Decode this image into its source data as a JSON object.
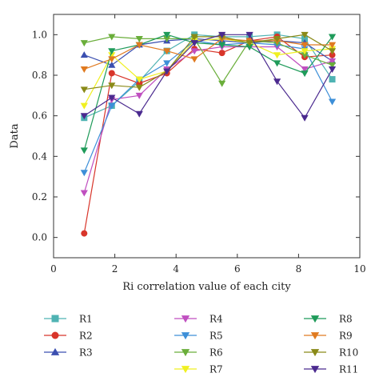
{
  "chart_data": {
    "type": "line",
    "xlabel": "Ri correlation value of each city",
    "ylabel": "Data",
    "xlim": [
      0,
      10
    ],
    "ylim": [
      -0.1,
      1.1
    ],
    "xticks": [
      0,
      2,
      4,
      6,
      8,
      10
    ],
    "yticks": [
      0.0,
      0.2,
      0.4,
      0.6,
      0.8,
      1.0
    ],
    "xtick_labels": [
      "0",
      "2",
      "4",
      "6",
      "8",
      "10"
    ],
    "ytick_labels": [
      "0.0",
      "0.2",
      "0.4",
      "0.6",
      "0.8",
      "1.0"
    ],
    "grid": false,
    "legend_position": "bottom",
    "x": [
      1,
      1.9,
      2.8,
      3.7,
      4.6,
      5.5,
      6.4,
      7.3,
      8.2,
      9.1
    ],
    "series": [
      {
        "name": "R1",
        "color": "#4fb3b3",
        "marker": "square",
        "values": [
          0.59,
          0.65,
          0.77,
          0.92,
          1.0,
          0.99,
          0.99,
          1.0,
          0.98,
          0.78
        ]
      },
      {
        "name": "R2",
        "color": "#d8352a",
        "marker": "circle",
        "values": [
          0.02,
          0.81,
          0.76,
          0.81,
          0.93,
          0.91,
          0.97,
          0.99,
          0.89,
          0.9
        ]
      },
      {
        "name": "R3",
        "color": "#3b4fb0",
        "marker": "triangle-up",
        "values": [
          0.9,
          0.85,
          0.95,
          0.97,
          0.98,
          0.97,
          0.96,
          0.97,
          0.96,
          0.87
        ]
      },
      {
        "name": "R4",
        "color": "#c04fc0",
        "marker": "triangle-down",
        "values": [
          0.22,
          0.68,
          0.7,
          0.83,
          0.92,
          0.94,
          0.94,
          0.94,
          0.83,
          0.87
        ]
      },
      {
        "name": "R5",
        "color": "#3d8fd8",
        "marker": "triangle-down",
        "values": [
          0.32,
          0.65,
          0.78,
          0.86,
          0.97,
          0.95,
          0.96,
          0.95,
          0.93,
          0.67
        ]
      },
      {
        "name": "R6",
        "color": "#6aae3a",
        "marker": "triangle-down",
        "values": [
          0.96,
          0.99,
          0.98,
          0.98,
          0.98,
          0.76,
          0.97,
          0.96,
          0.9,
          0.85
        ]
      },
      {
        "name": "R7",
        "color": "#f0f020",
        "marker": "triangle-down",
        "values": [
          0.65,
          0.9,
          0.78,
          0.82,
          0.97,
          0.98,
          0.96,
          0.9,
          0.92,
          0.93
        ]
      },
      {
        "name": "R8",
        "color": "#1f9b5a",
        "marker": "triangle-down",
        "values": [
          0.43,
          0.92,
          0.95,
          1.0,
          0.96,
          0.95,
          0.94,
          0.86,
          0.81,
          0.99
        ]
      },
      {
        "name": "R9",
        "color": "#e07a20",
        "marker": "triangle-down",
        "values": [
          0.83,
          0.88,
          0.95,
          0.92,
          0.88,
          0.98,
          0.97,
          0.97,
          0.95,
          0.95
        ]
      },
      {
        "name": "R10",
        "color": "#8a8a18",
        "marker": "triangle-down",
        "values": [
          0.73,
          0.75,
          0.74,
          0.82,
          0.99,
          0.99,
          0.96,
          0.98,
          1.0,
          0.92
        ]
      },
      {
        "name": "R11",
        "color": "#4b2a8f",
        "marker": "triangle-down",
        "values": [
          0.6,
          0.69,
          0.61,
          0.82,
          0.96,
          1.0,
          1.0,
          0.77,
          0.59,
          0.83
        ]
      }
    ]
  }
}
